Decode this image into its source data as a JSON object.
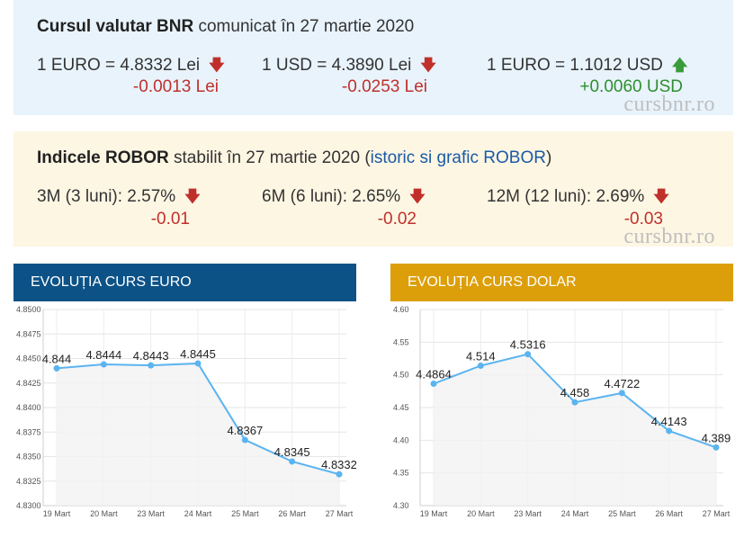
{
  "bnr": {
    "title_bold": "Cursul valutar BNR",
    "title_rest": " comunicat în 27 martie 2020",
    "rates": [
      {
        "label": "1 EURO = 4.8332 Lei",
        "delta": "-0.0013 Lei",
        "direction": "down"
      },
      {
        "label": "1 USD = 4.3890 Lei",
        "delta": "-0.0253 Lei",
        "direction": "down"
      },
      {
        "label": "1 EURO = 1.1012 USD",
        "delta": "+0.0060 USD",
        "direction": "up"
      }
    ],
    "watermark": "cursbnr.ro"
  },
  "robor": {
    "title_bold": "Indicele ROBOR",
    "title_mid": " stabilit în 27 martie 2020 (",
    "link": "istoric si grafic ROBOR",
    "title_end": ")",
    "items": [
      {
        "label": "3M (3 luni): 2.57%",
        "delta": "-0.01",
        "direction": "down"
      },
      {
        "label": "6M (6 luni): 2.65%",
        "delta": "-0.02",
        "direction": "down"
      },
      {
        "label": "12M (12 luni): 2.69%",
        "delta": "-0.03",
        "direction": "down"
      }
    ],
    "watermark": "cursbnr.ro"
  },
  "icons": {
    "down": "arrow-down-icon",
    "up": "arrow-up-icon"
  },
  "colors": {
    "down": "#c0302b",
    "up": "#3a9b3a",
    "euro_header": "#0c5287",
    "dolar_header": "#dc9f0a",
    "line": "#5bb4f0"
  },
  "chart_data": [
    {
      "type": "line",
      "title": "EVOLUȚIA CURS EURO",
      "categories": [
        "19 Mart",
        "20 Mart",
        "23 Mart",
        "24 Mart",
        "25 Mart",
        "26 Mart",
        "27 Mart"
      ],
      "values": [
        4.844,
        4.8444,
        4.8443,
        4.8445,
        4.8367,
        4.8345,
        4.8332
      ],
      "data_labels": [
        "4.844",
        "4.8444",
        "4.8443",
        "4.8445",
        "4.8367",
        "4.8345",
        "4.8332"
      ],
      "yticks": [
        "4.8300",
        "4.8325",
        "4.8350",
        "4.8375",
        "4.8400",
        "4.8425",
        "4.8450",
        "4.8475",
        "4.8500"
      ],
      "ylim": [
        4.83,
        4.85
      ],
      "grid": true
    },
    {
      "type": "line",
      "title": "EVOLUȚIA CURS DOLAR",
      "categories": [
        "19 Mart",
        "20 Mart",
        "23 Mart",
        "24 Mart",
        "25 Mart",
        "26 Mart",
        "27 Mart"
      ],
      "values": [
        4.4864,
        4.514,
        4.5316,
        4.458,
        4.4722,
        4.4143,
        4.389
      ],
      "data_labels": [
        "4.4864",
        "4.514",
        "4.5316",
        "4.458",
        "4.4722",
        "4.4143",
        "4.389"
      ],
      "yticks": [
        "4.30",
        "4.35",
        "4.40",
        "4.45",
        "4.50",
        "4.55",
        "4.60"
      ],
      "ylim": [
        4.3,
        4.6
      ],
      "grid": true
    }
  ]
}
